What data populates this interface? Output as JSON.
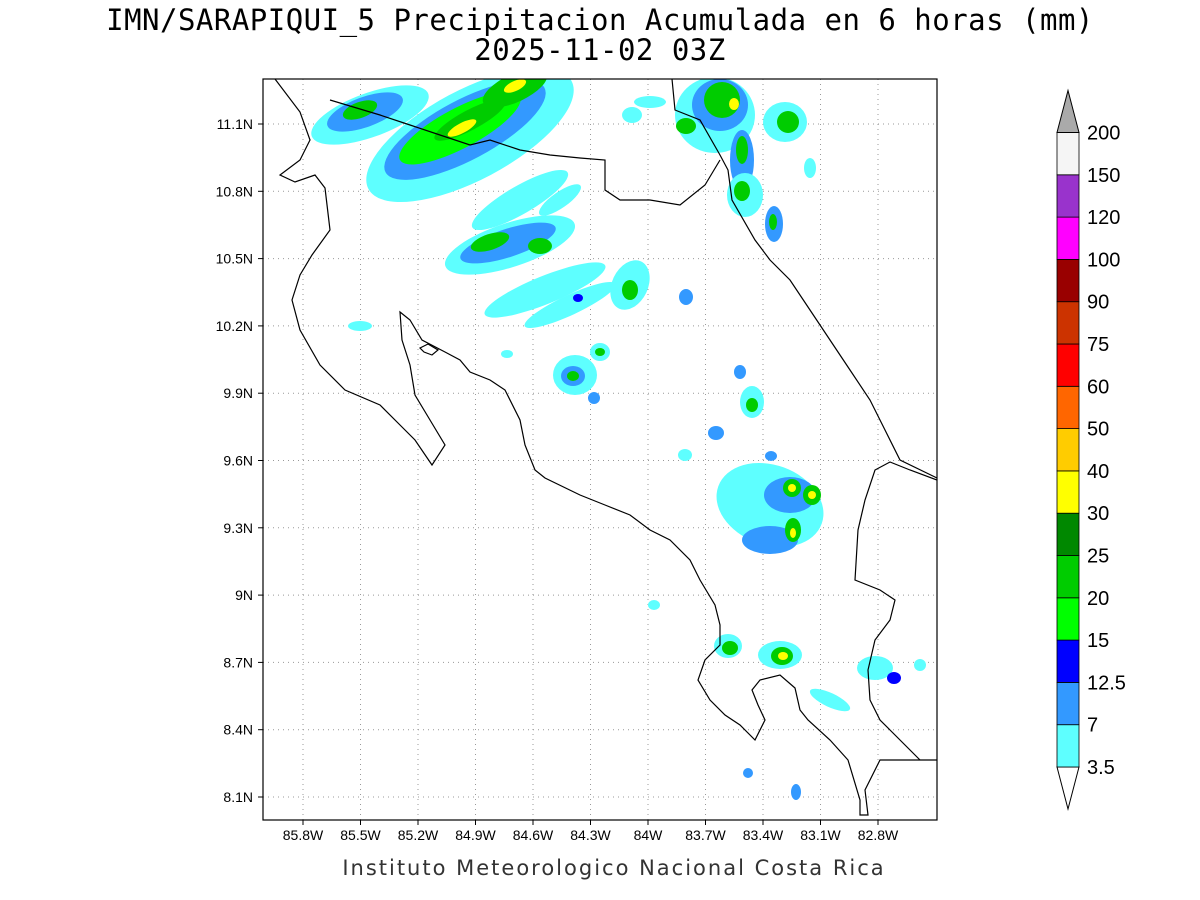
{
  "title_line1": "IMN/SARAPIQUI_5 Precipitacion Acumulada en 6 horas (mm)",
  "title_line2": "2025-11-02 03Z",
  "footer": "Instituto Meteorologico Nacional Costa Rica",
  "x_ticks": [
    "85.8W",
    "85.5W",
    "85.2W",
    "84.9W",
    "84.6W",
    "84.3W",
    "84W",
    "83.7W",
    "83.4W",
    "83.1W",
    "82.8W"
  ],
  "y_ticks": [
    "11.1N",
    "10.8N",
    "10.5N",
    "10.2N",
    "9.9N",
    "9.6N",
    "9.3N",
    "9N",
    "8.7N",
    "8.4N",
    "8.1N"
  ],
  "colorbar": {
    "labels": [
      "3.5",
      "7",
      "12.5",
      "15",
      "20",
      "25",
      "30",
      "40",
      "50",
      "60",
      "75",
      "90",
      "100",
      "120",
      "150",
      "200"
    ],
    "colors": [
      "#5effff",
      "#3399ff",
      "#0000ff",
      "#00ff00",
      "#00cc00",
      "#008800",
      "#ffff00",
      "#ffcc00",
      "#ff6600",
      "#ff0000",
      "#cc3300",
      "#990000",
      "#ff00ff",
      "#9933cc",
      "#f5f5f5"
    ],
    "under_color": "#ffffff",
    "over_color": "#aaaaaa"
  }
}
